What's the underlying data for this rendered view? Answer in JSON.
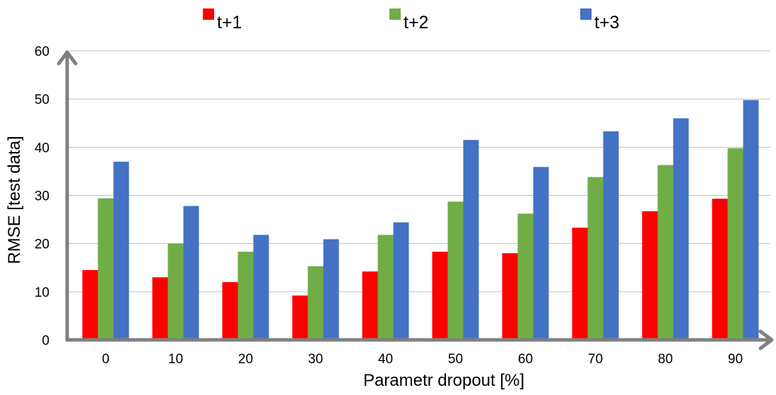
{
  "chart_data": {
    "type": "bar",
    "categories": [
      "0",
      "10",
      "20",
      "30",
      "40",
      "50",
      "60",
      "70",
      "80",
      "90"
    ],
    "series": [
      {
        "name": "t+1",
        "color": "#ff0000",
        "values": [
          14.5,
          13.0,
          12.0,
          9.2,
          14.2,
          18.3,
          18.0,
          23.3,
          26.7,
          29.3
        ]
      },
      {
        "name": "t+2",
        "color": "#70ad47",
        "values": [
          29.4,
          20.0,
          18.3,
          15.3,
          21.8,
          28.7,
          26.2,
          33.8,
          36.3,
          39.8
        ]
      },
      {
        "name": "t+3",
        "color": "#4472c4",
        "values": [
          37.0,
          27.8,
          21.8,
          20.9,
          24.4,
          41.5,
          35.9,
          43.3,
          46.0,
          49.8
        ]
      }
    ],
    "xlabel": "Parametr dropout [%]",
    "ylabel": "RMSE [test data]",
    "ylim": [
      0,
      60
    ],
    "yticks": [
      0,
      10,
      20,
      30,
      40,
      50,
      60
    ],
    "grid": true,
    "legend_position": "top",
    "axis_color": "#808080",
    "grid_color": "#c0c0c0"
  }
}
